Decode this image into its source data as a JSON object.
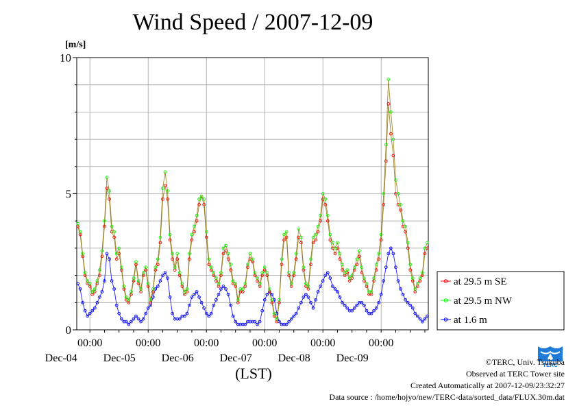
{
  "page": {
    "title": "Wind Speed / 2007-12-09",
    "y_unit": "[m/s]",
    "x_unit": "(LST)"
  },
  "credits": {
    "copyright": "©TERC, Univ. Tsukuba",
    "observed": "Observed at TERC Tower site",
    "created": "Created Automatically at 2007-12-09/23:32:27",
    "source": "Data source : /home/hojyo/new/TERC-data/sorted_data/FLUX.30m.dat",
    "logo_text": "TERC"
  },
  "colors": {
    "se": "#ff0000",
    "nw": "#00ff00",
    "low": "#0000ff",
    "line": "#8a6a00",
    "grid": "#a0a0a0",
    "logo": "#1e7bd8"
  },
  "chart_data": {
    "type": "line",
    "title": "Wind Speed / 2007-12-09",
    "ylabel": "[m/s]",
    "xlabel": "(LST)",
    "ylim": [
      0,
      10
    ],
    "yticks": [
      0,
      5,
      10
    ],
    "grid": true,
    "legend_position": "right-bottom",
    "xticks": [
      {
        "time": "00:00",
        "date": "Dec-04"
      },
      {
        "time": "00:00",
        "date": "Dec-05"
      },
      {
        "time": "00:00",
        "date": "Dec-06"
      },
      {
        "time": "00:00",
        "date": "Dec-07"
      },
      {
        "time": "00:00",
        "date": "Dec-08"
      },
      {
        "time": "00:00",
        "date": "Dec-09"
      }
    ],
    "x_start": "2007-12-03 19:00",
    "x_end": "2007-12-10 00:00",
    "sampling": "hourly",
    "series": [
      {
        "name": "at 29.5 m SE",
        "values": [
          3.8,
          3.5,
          2.7,
          2.0,
          1.7,
          1.6,
          1.3,
          1.4,
          1.7,
          2.0,
          2.7,
          3.8,
          5.2,
          4.8,
          3.6,
          3.4,
          2.6,
          2.8,
          2.2,
          1.5,
          1.1,
          1.0,
          1.3,
          1.8,
          2.4,
          1.7,
          1.4,
          2.0,
          2.2,
          1.6,
          1.0,
          1.4,
          2.2,
          2.4,
          3.2,
          4.8,
          5.3,
          4.8,
          3.3,
          2.6,
          2.2,
          2.6,
          2.0,
          1.6,
          1.3,
          1.4,
          2.6,
          3.3,
          3.6,
          4.0,
          4.6,
          4.9,
          4.6,
          3.4,
          2.4,
          2.2,
          2.0,
          1.8,
          1.6,
          2.0,
          2.8,
          2.9,
          2.6,
          2.2,
          1.7,
          1.6,
          1.0,
          1.4,
          1.4,
          1.6,
          2.3,
          2.6,
          2.5,
          2.0,
          1.8,
          1.6,
          2.0,
          2.2,
          2.0,
          1.4,
          1.0,
          0.5,
          0.3,
          1.0,
          2.4,
          3.3,
          3.4,
          2.0,
          1.6,
          2.0,
          2.6,
          3.4,
          3.2,
          2.2,
          1.6,
          1.5,
          2.4,
          3.2,
          3.3,
          3.6,
          4.0,
          4.8,
          4.6,
          4.0,
          3.3,
          3.0,
          2.8,
          3.0,
          2.6,
          2.2,
          2.0,
          2.1,
          1.8,
          1.9,
          2.2,
          2.4,
          2.7,
          2.1,
          1.8,
          1.6,
          1.3,
          1.3,
          1.8,
          2.2,
          2.6,
          3.3,
          4.6,
          6.2,
          8.3,
          7.2,
          6.4,
          5.0,
          4.6,
          4.4,
          3.8,
          3.6,
          3.0,
          2.2,
          1.8,
          1.4,
          1.6,
          1.8,
          2.0,
          2.8,
          3.0
        ],
        "color": "#ff0000"
      },
      {
        "name": "at 29.5 m NW",
        "values": [
          3.9,
          3.6,
          2.8,
          2.1,
          1.8,
          1.7,
          1.4,
          1.5,
          1.8,
          2.2,
          2.9,
          4.0,
          5.6,
          5.1,
          3.8,
          3.6,
          2.8,
          3.0,
          2.3,
          1.6,
          1.2,
          1.1,
          1.4,
          1.9,
          2.5,
          1.8,
          1.5,
          2.1,
          2.3,
          1.7,
          1.1,
          1.5,
          2.3,
          2.6,
          3.4,
          5.2,
          5.8,
          5.1,
          3.5,
          2.8,
          2.3,
          2.8,
          2.1,
          1.7,
          1.4,
          1.5,
          2.8,
          3.5,
          3.8,
          4.2,
          4.8,
          4.9,
          4.8,
          3.6,
          2.6,
          2.3,
          2.1,
          1.9,
          1.7,
          2.1,
          3.0,
          3.1,
          2.8,
          2.4,
          1.8,
          1.7,
          1.1,
          1.5,
          1.5,
          1.7,
          2.4,
          2.8,
          2.6,
          2.1,
          1.9,
          1.7,
          2.1,
          2.3,
          2.1,
          1.5,
          1.1,
          0.6,
          0.4,
          1.1,
          2.6,
          3.5,
          3.6,
          2.1,
          1.7,
          2.1,
          2.8,
          3.7,
          3.4,
          2.3,
          1.7,
          1.6,
          2.6,
          3.4,
          3.5,
          3.8,
          4.2,
          5.0,
          4.8,
          4.2,
          3.5,
          3.2,
          3.0,
          3.2,
          2.8,
          2.4,
          2.1,
          2.2,
          1.9,
          2.0,
          2.3,
          2.6,
          2.9,
          2.3,
          1.9,
          1.7,
          1.4,
          1.4,
          1.9,
          2.4,
          2.8,
          3.5,
          5.0,
          6.8,
          9.2,
          8.0,
          7.0,
          5.5,
          5.0,
          4.6,
          4.0,
          3.8,
          3.2,
          2.4,
          1.9,
          1.5,
          1.7,
          1.9,
          2.1,
          3.0,
          3.2
        ],
        "color": "#00ff00"
      },
      {
        "name": "at 1.6 m",
        "values": [
          1.7,
          1.5,
          1.0,
          0.7,
          0.5,
          0.6,
          0.7,
          0.8,
          1.0,
          1.2,
          1.4,
          1.8,
          2.8,
          2.6,
          1.8,
          1.5,
          0.9,
          0.6,
          0.4,
          0.3,
          0.3,
          0.2,
          0.3,
          0.4,
          0.5,
          0.4,
          0.3,
          0.4,
          0.6,
          0.8,
          0.9,
          1.2,
          1.5,
          1.6,
          1.8,
          2.0,
          2.1,
          1.9,
          1.2,
          0.6,
          0.4,
          0.4,
          0.4,
          0.5,
          0.5,
          0.6,
          0.9,
          1.2,
          1.3,
          1.4,
          1.2,
          1.0,
          0.8,
          0.6,
          0.5,
          0.6,
          0.9,
          1.1,
          1.3,
          1.5,
          1.6,
          1.5,
          1.3,
          0.9,
          0.5,
          0.3,
          0.2,
          0.2,
          0.2,
          0.2,
          0.3,
          0.3,
          0.3,
          0.3,
          0.2,
          0.3,
          0.7,
          1.1,
          1.3,
          1.4,
          1.3,
          1.1,
          0.6,
          0.3,
          0.2,
          0.2,
          0.2,
          0.3,
          0.4,
          0.5,
          0.6,
          0.8,
          1.0,
          1.2,
          1.3,
          1.2,
          1.0,
          0.8,
          1.1,
          1.4,
          1.6,
          1.8,
          2.0,
          2.1,
          1.9,
          1.6,
          1.5,
          1.4,
          1.2,
          1.0,
          0.9,
          0.8,
          0.7,
          0.7,
          0.8,
          0.9,
          1.0,
          1.0,
          0.9,
          0.7,
          0.6,
          0.6,
          0.7,
          0.8,
          1.0,
          1.3,
          1.8,
          2.3,
          2.8,
          3.0,
          2.8,
          2.3,
          1.8,
          1.5,
          1.3,
          1.1,
          1.0,
          0.9,
          0.8,
          0.6,
          0.5,
          0.4,
          0.3,
          0.4,
          0.5
        ],
        "color": "#0000ff"
      }
    ]
  }
}
